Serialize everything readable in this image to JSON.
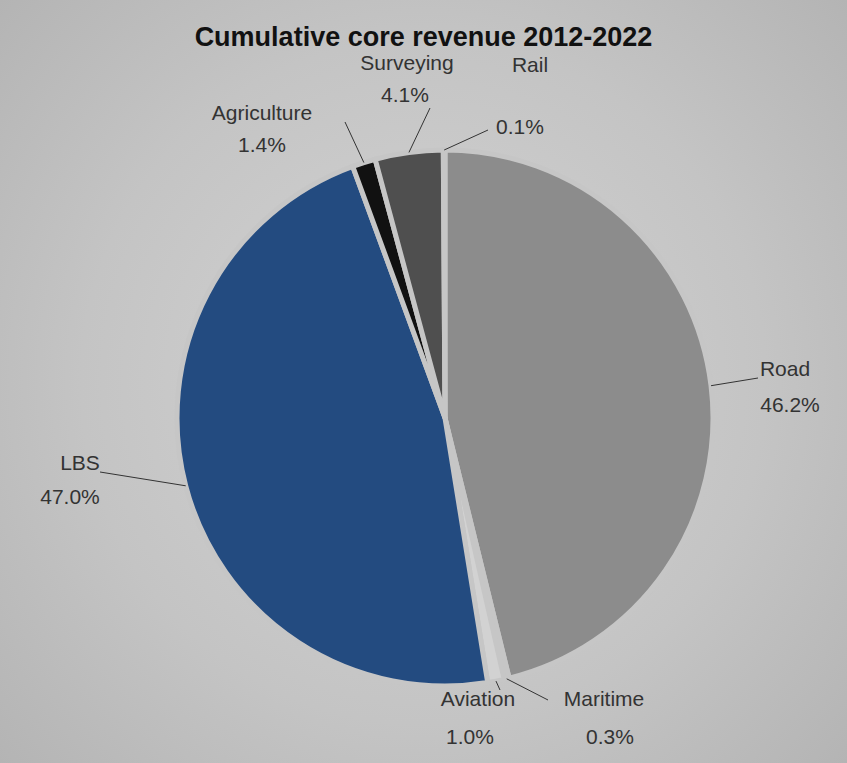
{
  "chart_data": {
    "type": "pie",
    "title": "Cumulative core revenue 2012-2022",
    "categories": [
      "Road",
      "Maritime",
      "Aviation",
      "LBS",
      "Agriculture",
      "Surveying",
      "Rail"
    ],
    "values": [
      46.2,
      0.3,
      1.0,
      47.0,
      1.4,
      4.1,
      0.1
    ],
    "value_labels": [
      "46.2%",
      "0.3%",
      "1.0%",
      "47.0%",
      "1.4%",
      "4.1%",
      "0.1%"
    ],
    "colors": [
      "#8c8c8c",
      "#e2e2e2",
      "#d2d2d2",
      "#234b80",
      "#111111",
      "#4f4f4f",
      "#d8d8d8"
    ],
    "data_labels": true
  }
}
